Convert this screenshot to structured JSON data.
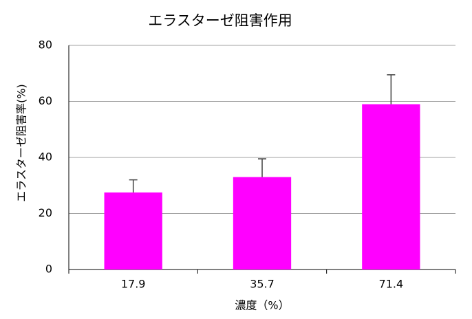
{
  "chart_data": {
    "type": "bar",
    "title": "エラスターゼ阻害作用",
    "x_label": "濃度（%）",
    "y_label": "エラスターゼ阻害率(%)",
    "categories": [
      "17.9",
      "35.7",
      "71.4"
    ],
    "values": [
      27.5,
      33,
      59
    ],
    "errors": [
      4.5,
      6.5,
      10.5
    ],
    "color": "#ff00ff",
    "error_color": "#404040",
    "ylim": [
      0,
      80
    ],
    "yticks": [
      0,
      20,
      40,
      60,
      80
    ],
    "grid": true
  }
}
